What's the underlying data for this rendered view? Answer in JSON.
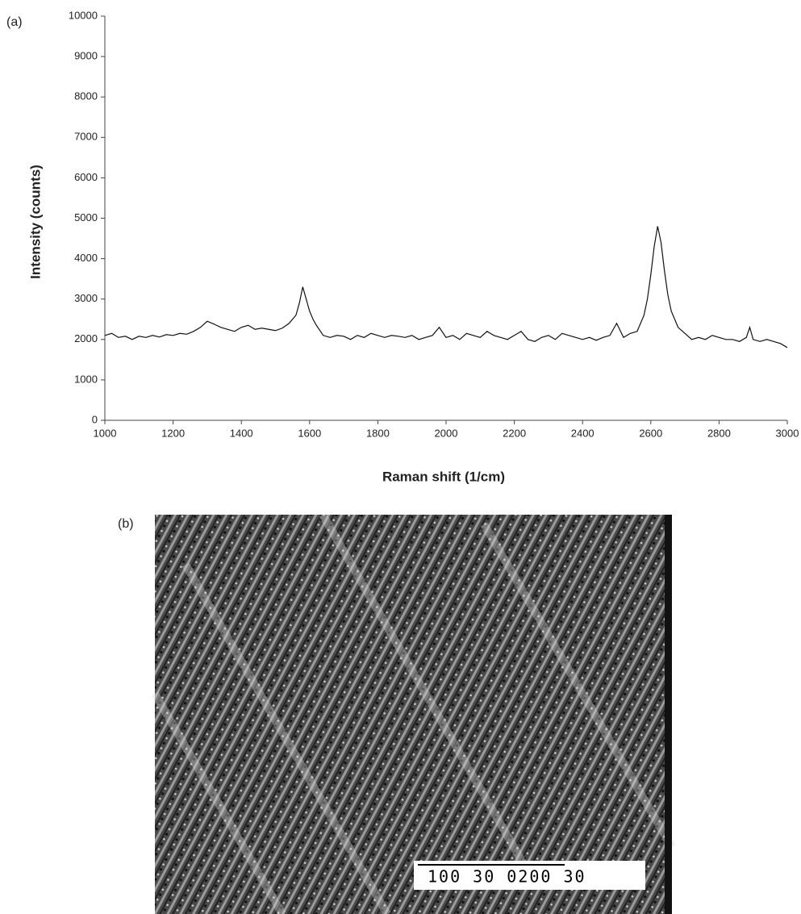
{
  "panel_labels": [
    "(a)",
    "(b)"
  ],
  "micrograph_scale_bar": "100 30 0200 30",
  "chart_data": {
    "type": "line",
    "x_label": "Raman shift (1/cm)",
    "y_label": "Intensity (counts)",
    "x": [
      1000,
      1020,
      1040,
      1060,
      1080,
      1100,
      1120,
      1140,
      1160,
      1180,
      1200,
      1220,
      1240,
      1260,
      1280,
      1300,
      1320,
      1340,
      1360,
      1380,
      1400,
      1420,
      1440,
      1460,
      1480,
      1500,
      1520,
      1540,
      1560,
      1570,
      1580,
      1590,
      1600,
      1610,
      1620,
      1640,
      1660,
      1680,
      1700,
      1720,
      1740,
      1760,
      1780,
      1800,
      1820,
      1840,
      1860,
      1880,
      1900,
      1920,
      1940,
      1960,
      1980,
      2000,
      2020,
      2040,
      2060,
      2080,
      2100,
      2120,
      2140,
      2160,
      2180,
      2200,
      2220,
      2240,
      2260,
      2280,
      2300,
      2320,
      2340,
      2360,
      2380,
      2400,
      2420,
      2440,
      2460,
      2480,
      2500,
      2520,
      2540,
      2560,
      2580,
      2590,
      2600,
      2610,
      2620,
      2630,
      2640,
      2650,
      2660,
      2680,
      2700,
      2720,
      2740,
      2760,
      2780,
      2800,
      2820,
      2840,
      2860,
      2880,
      2890,
      2900,
      2920,
      2940,
      2960,
      2980,
      3000
    ],
    "series": [
      {
        "color": "#111111",
        "values": [
          2100,
          2150,
          2050,
          2080,
          2000,
          2080,
          2050,
          2100,
          2060,
          2120,
          2100,
          2150,
          2130,
          2200,
          2300,
          2450,
          2380,
          2300,
          2250,
          2200,
          2300,
          2350,
          2250,
          2280,
          2250,
          2220,
          2280,
          2400,
          2600,
          2900,
          3300,
          3000,
          2700,
          2500,
          2350,
          2100,
          2050,
          2100,
          2080,
          2000,
          2100,
          2050,
          2150,
          2100,
          2050,
          2100,
          2080,
          2050,
          2100,
          2000,
          2050,
          2100,
          2300,
          2050,
          2100,
          2000,
          2150,
          2100,
          2050,
          2200,
          2100,
          2050,
          2000,
          2100,
          2200,
          2000,
          1950,
          2050,
          2100,
          2000,
          2150,
          2100,
          2050,
          2000,
          2050,
          1980,
          2050,
          2100,
          2400,
          2050,
          2150,
          2200,
          2600,
          3000,
          3600,
          4300,
          4800,
          4400,
          3700,
          3100,
          2700,
          2300,
          2150,
          2000,
          2050,
          2000,
          2100,
          2050,
          2000,
          2000,
          1950,
          2050,
          2300,
          2000,
          1950,
          2000,
          1950,
          1900,
          1800
        ]
      }
    ],
    "xlim": [
      1000,
      3000
    ],
    "xticks": [
      1000,
      1200,
      1400,
      1600,
      1800,
      2000,
      2200,
      2400,
      2600,
      2800,
      3000
    ],
    "ylim": [
      0,
      10000
    ],
    "yticks": [
      0,
      1000,
      2000,
      3000,
      4000,
      5000,
      6000,
      7000,
      8000,
      9000,
      10000
    ],
    "grid": false
  }
}
